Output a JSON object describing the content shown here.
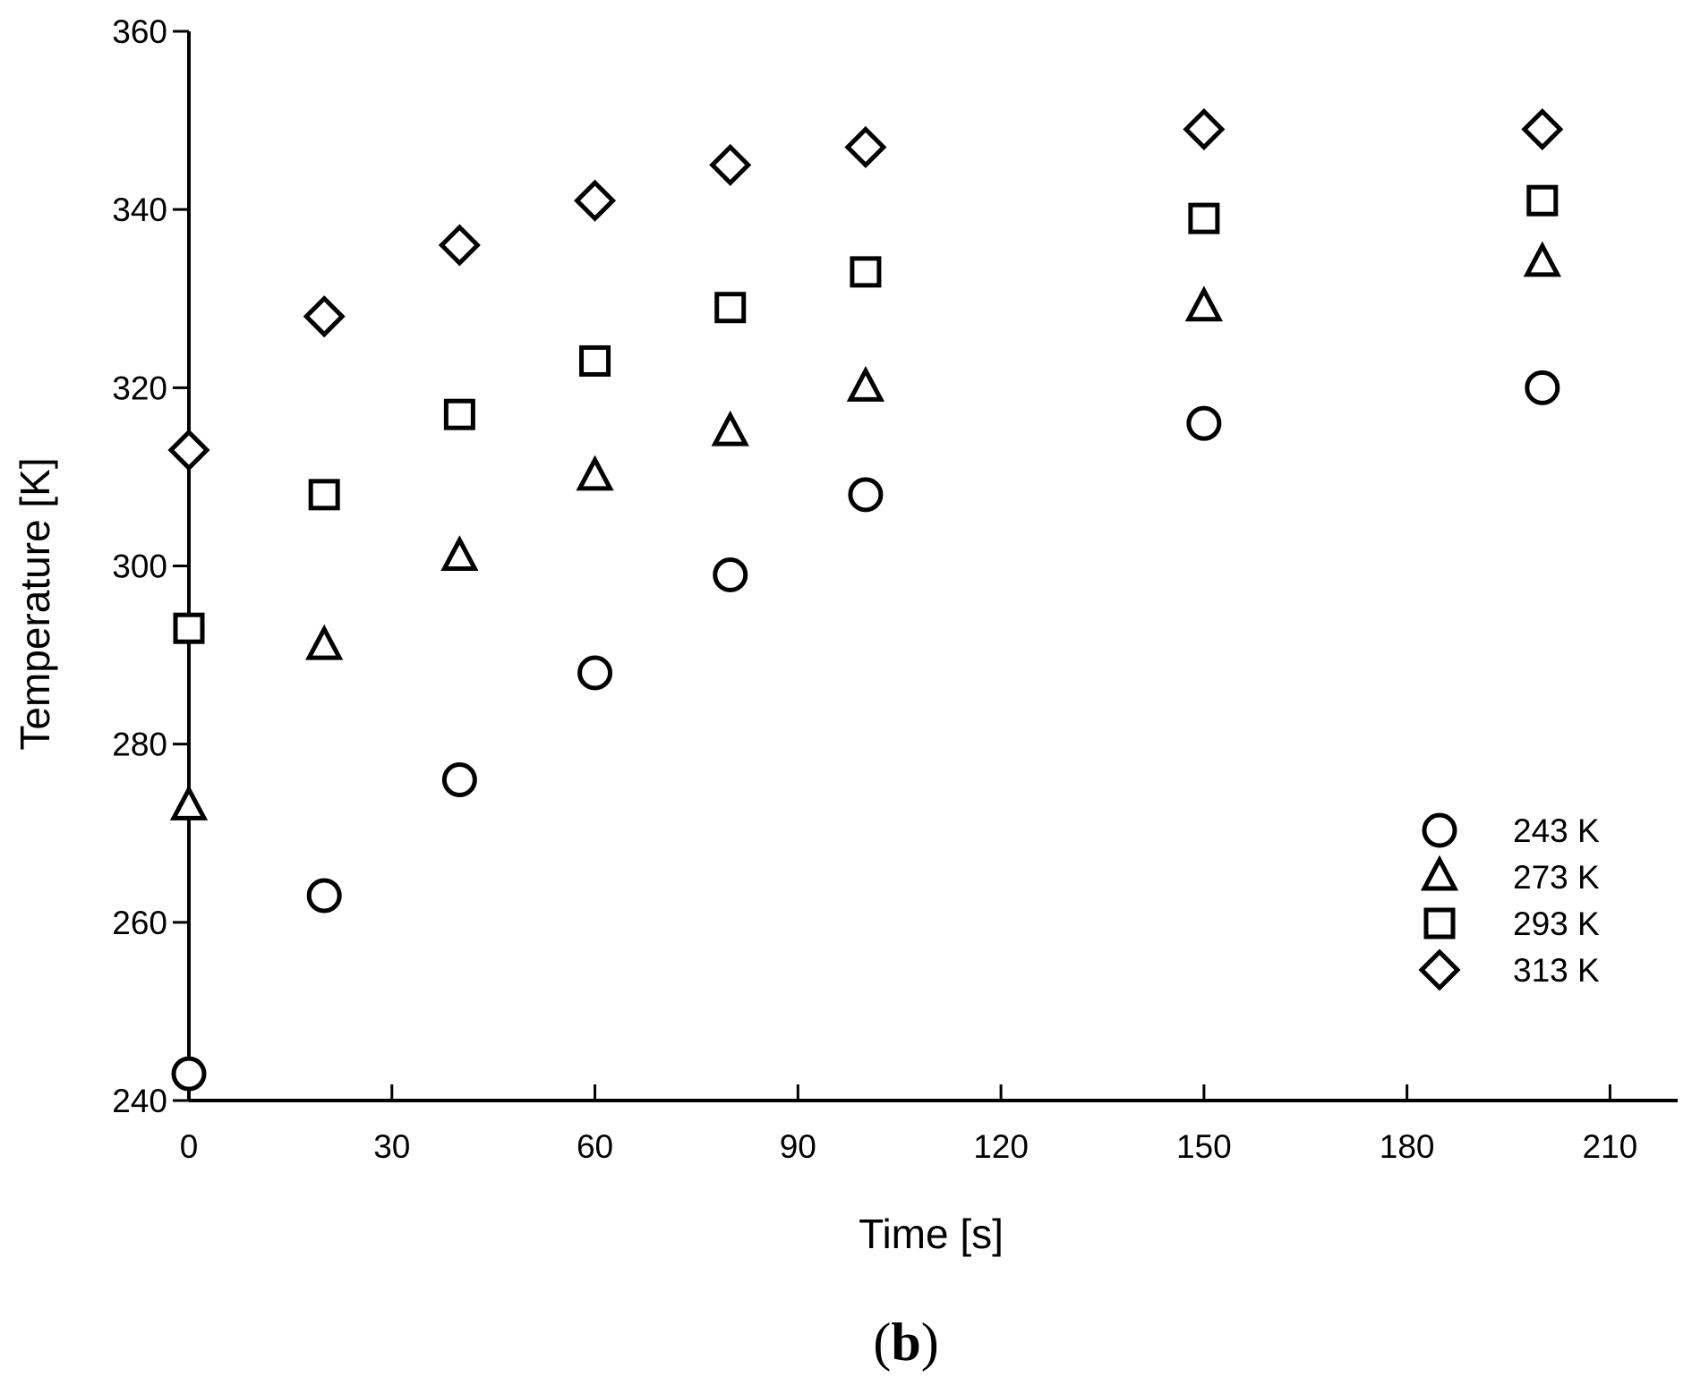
{
  "panel_label": {
    "open": "(",
    "letter": "b",
    "close": ")"
  },
  "chart_data": {
    "type": "scatter",
    "title": "",
    "xlabel": "Time [s]",
    "ylabel": "Temperature [K]",
    "xlim": [
      0,
      220
    ],
    "ylim": [
      240,
      360
    ],
    "xticks": [
      0,
      30,
      60,
      90,
      120,
      150,
      180,
      210
    ],
    "yticks": [
      240,
      260,
      280,
      300,
      320,
      340,
      360
    ],
    "grid": false,
    "legend_position": "bottom-right",
    "marker_color": "#000000",
    "series": [
      {
        "name": "243 K",
        "marker": "circle",
        "x": [
          0,
          20,
          40,
          60,
          80,
          100,
          150,
          200
        ],
        "y": [
          243,
          263,
          276,
          288,
          299,
          308,
          316,
          320
        ]
      },
      {
        "name": "273 K",
        "marker": "triangle",
        "x": [
          0,
          20,
          40,
          60,
          80,
          100,
          150,
          200
        ],
        "y": [
          273,
          291,
          301,
          310,
          315,
          320,
          329,
          334
        ]
      },
      {
        "name": "293 K",
        "marker": "square",
        "x": [
          0,
          20,
          40,
          60,
          80,
          100,
          150,
          200
        ],
        "y": [
          293,
          308,
          317,
          323,
          329,
          333,
          339,
          341
        ]
      },
      {
        "name": "313 K",
        "marker": "diamond",
        "x": [
          0,
          20,
          40,
          60,
          80,
          100,
          150,
          200
        ],
        "y": [
          313,
          328,
          336,
          341,
          345,
          347,
          349,
          349
        ]
      }
    ]
  }
}
